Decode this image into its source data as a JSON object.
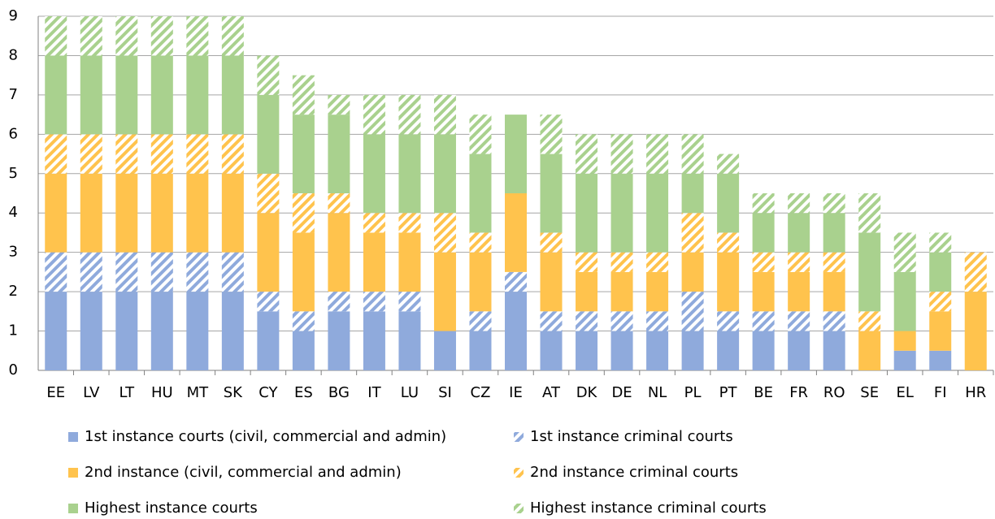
{
  "chart_data": {
    "type": "bar",
    "stacked": true,
    "categories": [
      "EE",
      "LV",
      "LT",
      "HU",
      "MT",
      "SK",
      "CY",
      "ES",
      "BG",
      "IT",
      "LU",
      "SI",
      "CZ",
      "IE",
      "AT",
      "DK",
      "DE",
      "NL",
      "PL",
      "PT",
      "BE",
      "FR",
      "RO",
      "SE",
      "EL",
      "FI",
      "HR"
    ],
    "series": [
      {
        "name": "1st instance courts (civil, commercial and admin)",
        "color": "#8faadc",
        "hatch": false,
        "values": [
          2,
          2,
          2,
          2,
          2,
          2,
          1.5,
          1,
          1.5,
          1.5,
          1.5,
          1,
          1,
          2,
          1,
          1,
          1,
          1,
          1,
          1,
          1,
          1,
          1,
          0,
          0.5,
          0.5,
          0
        ]
      },
      {
        "name": "1st instance criminal courts",
        "color": "#8faadc",
        "hatch": true,
        "values": [
          1,
          1,
          1,
          1,
          1,
          1,
          0.5,
          0.5,
          0.5,
          0.5,
          0.5,
          0,
          0.5,
          0.5,
          0.5,
          0.5,
          0.5,
          0.5,
          1,
          0.5,
          0.5,
          0.5,
          0.5,
          0,
          0,
          0,
          0
        ]
      },
      {
        "name": "2nd instance (civil, commercial and admin)",
        "color": "#ffc34d",
        "hatch": false,
        "values": [
          2,
          2,
          2,
          2,
          2,
          2,
          2,
          2,
          2,
          1.5,
          1.5,
          2,
          1.5,
          2,
          1.5,
          1,
          1,
          1,
          1,
          1.5,
          1,
          1,
          1,
          1,
          0.5,
          1,
          2
        ]
      },
      {
        "name": "2nd instance criminal courts",
        "color": "#ffc34d",
        "hatch": true,
        "values": [
          1,
          1,
          1,
          1,
          1,
          1,
          1,
          1,
          0.5,
          0.5,
          0.5,
          1,
          0.5,
          0,
          0.5,
          0.5,
          0.5,
          0.5,
          1,
          0.5,
          0.5,
          0.5,
          0.5,
          0.5,
          0,
          0.5,
          1
        ]
      },
      {
        "name": "Highest instance courts",
        "color": "#a9d18e",
        "hatch": false,
        "values": [
          2,
          2,
          2,
          2,
          2,
          2,
          2,
          2,
          2,
          2,
          2,
          2,
          2,
          2,
          2,
          2,
          2,
          2,
          1,
          1.5,
          1,
          1,
          1,
          2,
          1.5,
          1,
          0
        ]
      },
      {
        "name": "Highest instance criminal courts",
        "color": "#a9d18e",
        "hatch": true,
        "values": [
          1,
          1,
          1,
          1,
          1,
          1,
          1,
          1,
          0.5,
          1,
          1,
          1,
          1,
          0,
          1,
          1,
          1,
          1,
          1,
          0.5,
          0.5,
          0.5,
          0.5,
          1,
          1,
          0.5,
          0
        ]
      }
    ],
    "ylim": [
      0,
      9
    ],
    "yticks": [
      0,
      1,
      2,
      3,
      4,
      5,
      6,
      7,
      8,
      9
    ],
    "grid": true
  }
}
